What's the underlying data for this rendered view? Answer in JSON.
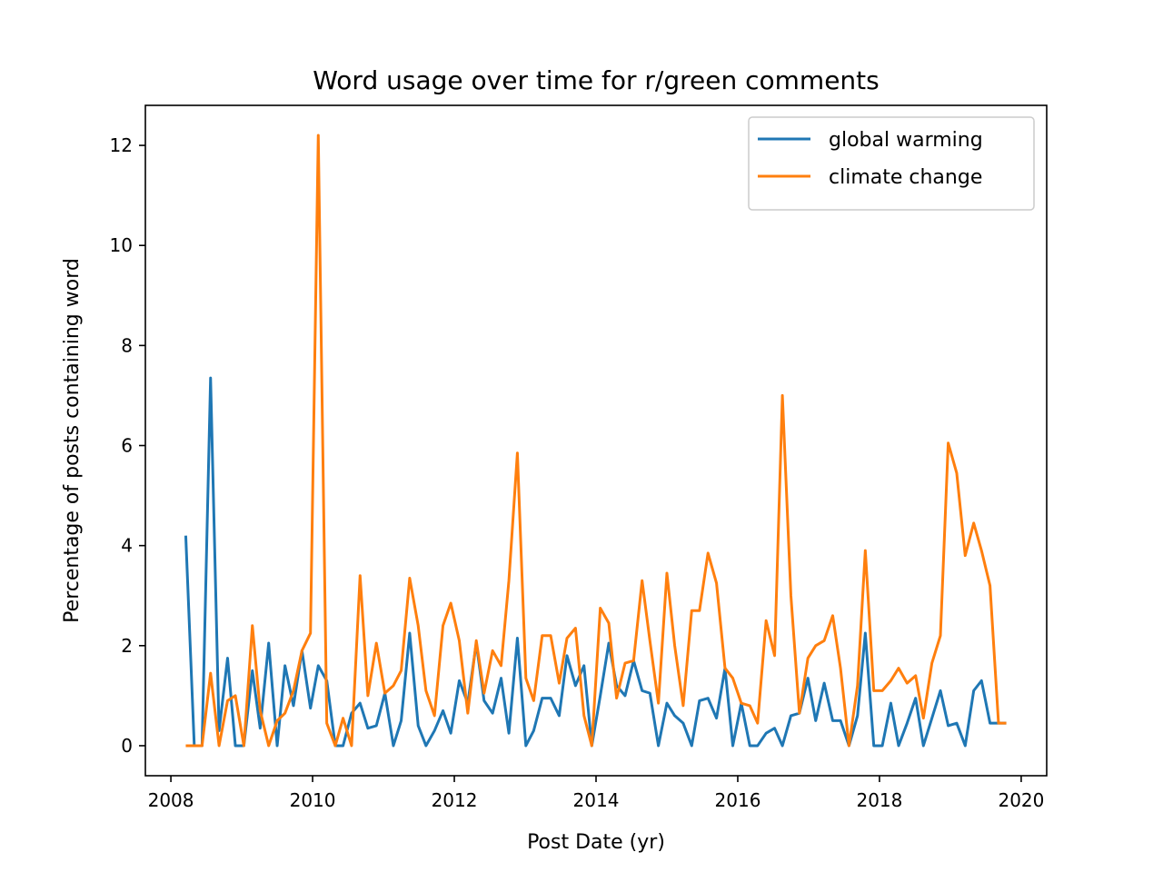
{
  "chart_data": {
    "type": "line",
    "title": "Word usage over time for r/green comments",
    "xlabel": "Post Date (yr)",
    "ylabel": "Percentage of posts containing word",
    "x": [
      2008.21,
      2008.33,
      2008.44,
      2008.56,
      2008.68,
      2008.8,
      2008.91,
      2009.03,
      2009.15,
      2009.26,
      2009.38,
      2009.5,
      2009.61,
      2009.73,
      2009.85,
      2009.97,
      2010.08,
      2010.2,
      2010.32,
      2010.43,
      2010.55,
      2010.67,
      2010.78,
      2010.9,
      2011.02,
      2011.14,
      2011.25,
      2011.37,
      2011.49,
      2011.6,
      2011.72,
      2011.84,
      2011.95,
      2012.07,
      2012.19,
      2012.31,
      2012.42,
      2012.54,
      2012.66,
      2012.77,
      2012.89,
      2013.01,
      2013.12,
      2013.24,
      2013.36,
      2013.48,
      2013.59,
      2013.71,
      2013.83,
      2013.94,
      2014.06,
      2014.18,
      2014.29,
      2014.41,
      2014.53,
      2014.65,
      2014.76,
      2014.88,
      2015.0,
      2015.11,
      2015.23,
      2015.35,
      2015.46,
      2015.58,
      2015.7,
      2015.82,
      2015.93,
      2016.05,
      2016.17,
      2016.28,
      2016.4,
      2016.52,
      2016.63,
      2016.75,
      2016.87,
      2016.99,
      2017.1,
      2017.22,
      2017.34,
      2017.45,
      2017.57,
      2017.69,
      2017.8,
      2017.92,
      2018.04,
      2018.16,
      2018.27,
      2018.39,
      2018.51,
      2018.62,
      2018.74,
      2018.86,
      2018.97,
      2019.09,
      2019.21,
      2019.33,
      2019.44,
      2019.56,
      2019.68,
      2019.79
    ],
    "series": [
      {
        "name": "global warming",
        "color": "#1f77b4",
        "values": [
          4.2,
          0,
          0,
          7.35,
          0.3,
          1.75,
          0,
          0,
          1.5,
          0.35,
          2.05,
          0,
          1.6,
          0.8,
          1.9,
          0.75,
          1.6,
          1.3,
          0,
          0,
          0.65,
          0.85,
          0.35,
          0.4,
          1.05,
          0,
          0.5,
          2.25,
          0.4,
          0,
          0.3,
          0.7,
          0.25,
          1.3,
          0.85,
          2.05,
          0.9,
          0.65,
          1.35,
          0.25,
          2.15,
          0,
          0.3,
          0.95,
          0.95,
          0.6,
          1.8,
          1.2,
          1.6,
          0,
          1.0,
          2.05,
          1.2,
          1.0,
          1.7,
          1.1,
          1.05,
          0,
          0.85,
          0.6,
          0.45,
          0,
          0.9,
          0.95,
          0.55,
          1.55,
          0,
          0.85,
          0,
          0,
          0.25,
          0.35,
          0,
          0.6,
          0.65,
          1.35,
          0.5,
          1.25,
          0.5,
          0.5,
          0,
          0.6,
          2.25,
          0,
          0,
          0.85,
          0,
          0.45,
          0.95,
          0,
          0.55,
          1.1,
          0.4,
          0.45,
          0,
          1.1,
          1.3,
          0.45,
          0.45,
          0.45
        ]
      },
      {
        "name": "climate change",
        "color": "#ff7f0e",
        "values": [
          0,
          0,
          0,
          1.45,
          0,
          0.9,
          1.0,
          0,
          2.4,
          0.7,
          0,
          0.5,
          0.65,
          1.1,
          1.9,
          2.25,
          12.2,
          0.45,
          0,
          0.55,
          0,
          3.4,
          1.0,
          2.05,
          1.05,
          1.2,
          1.5,
          3.35,
          2.4,
          1.1,
          0.6,
          2.4,
          2.85,
          2.1,
          0.65,
          2.1,
          1.05,
          1.9,
          1.6,
          3.3,
          5.85,
          1.35,
          0.9,
          2.2,
          2.2,
          1.25,
          2.15,
          2.35,
          0.6,
          0,
          2.75,
          2.45,
          0.95,
          1.65,
          1.7,
          3.3,
          2.1,
          0.85,
          3.45,
          2.0,
          0.8,
          2.7,
          2.7,
          3.85,
          3.25,
          1.55,
          1.35,
          0.85,
          0.8,
          0.45,
          2.5,
          1.8,
          7.0,
          3.0,
          0.65,
          1.75,
          2.0,
          2.1,
          2.6,
          1.55,
          0,
          1.2,
          3.9,
          1.1,
          1.1,
          1.3,
          1.55,
          1.25,
          1.4,
          0.55,
          1.65,
          2.2,
          6.05,
          5.45,
          3.8,
          4.45,
          3.9,
          3.2,
          0.45,
          0.45
        ]
      }
    ],
    "xlim": [
      2007.64,
      2020.36
    ],
    "xticks": [
      2008,
      2010,
      2012,
      2014,
      2016,
      2018,
      2020
    ],
    "ylim": [
      -0.6,
      12.8
    ],
    "yticks": [
      0,
      2,
      4,
      6,
      8,
      10,
      12
    ],
    "legend": "upper right",
    "grid": false
  }
}
